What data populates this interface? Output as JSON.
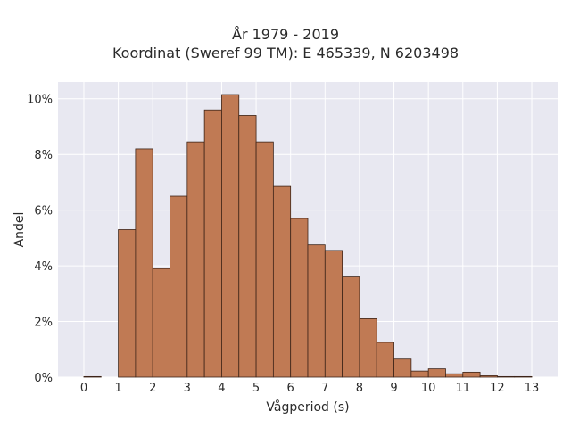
{
  "chart_data": {
    "type": "bar",
    "title_line1": "År 1979 - 2019",
    "title_line2": "Koordinat (Sweref 99 TM): E 465339, N 6203498",
    "xlabel": "Vågperiod (s)",
    "ylabel": "Andel",
    "xlim": [
      -0.75,
      13.75
    ],
    "ylim": [
      0,
      10.6
    ],
    "bin_width": 0.5,
    "x_ticks": [
      0,
      1,
      2,
      3,
      4,
      5,
      6,
      7,
      8,
      9,
      10,
      11,
      12,
      13
    ],
    "x_tick_labels": [
      "0",
      "1",
      "2",
      "3",
      "4",
      "5",
      "6",
      "7",
      "8",
      "9",
      "10",
      "11",
      "12",
      "13"
    ],
    "y_ticks": [
      0,
      2,
      4,
      6,
      8,
      10
    ],
    "y_tick_labels": [
      "0%",
      "2%",
      "4%",
      "6%",
      "8%",
      "10%"
    ],
    "bins": [
      {
        "x0": 0.0,
        "value": 0.02
      },
      {
        "x0": 1.0,
        "value": 5.3
      },
      {
        "x0": 1.5,
        "value": 8.2
      },
      {
        "x0": 2.0,
        "value": 3.9
      },
      {
        "x0": 2.5,
        "value": 6.5
      },
      {
        "x0": 3.0,
        "value": 8.45
      },
      {
        "x0": 3.5,
        "value": 9.6
      },
      {
        "x0": 4.0,
        "value": 10.15
      },
      {
        "x0": 4.5,
        "value": 9.4
      },
      {
        "x0": 5.0,
        "value": 8.45
      },
      {
        "x0": 5.5,
        "value": 6.85
      },
      {
        "x0": 6.0,
        "value": 5.7
      },
      {
        "x0": 6.5,
        "value": 4.75
      },
      {
        "x0": 7.0,
        "value": 4.55
      },
      {
        "x0": 7.5,
        "value": 3.6
      },
      {
        "x0": 8.0,
        "value": 2.1
      },
      {
        "x0": 8.5,
        "value": 1.25
      },
      {
        "x0": 9.0,
        "value": 0.65
      },
      {
        "x0": 9.5,
        "value": 0.22
      },
      {
        "x0": 10.0,
        "value": 0.3
      },
      {
        "x0": 10.5,
        "value": 0.12
      },
      {
        "x0": 11.0,
        "value": 0.18
      },
      {
        "x0": 11.5,
        "value": 0.05
      },
      {
        "x0": 12.0,
        "value": 0.02
      },
      {
        "x0": 12.5,
        "value": 0.02
      }
    ],
    "grid": true,
    "colors": {
      "bar_fill": "#c07a54",
      "bar_edge": "#3d2418",
      "plot_background": "#e8e8f1",
      "grid": "#ffffff"
    }
  }
}
